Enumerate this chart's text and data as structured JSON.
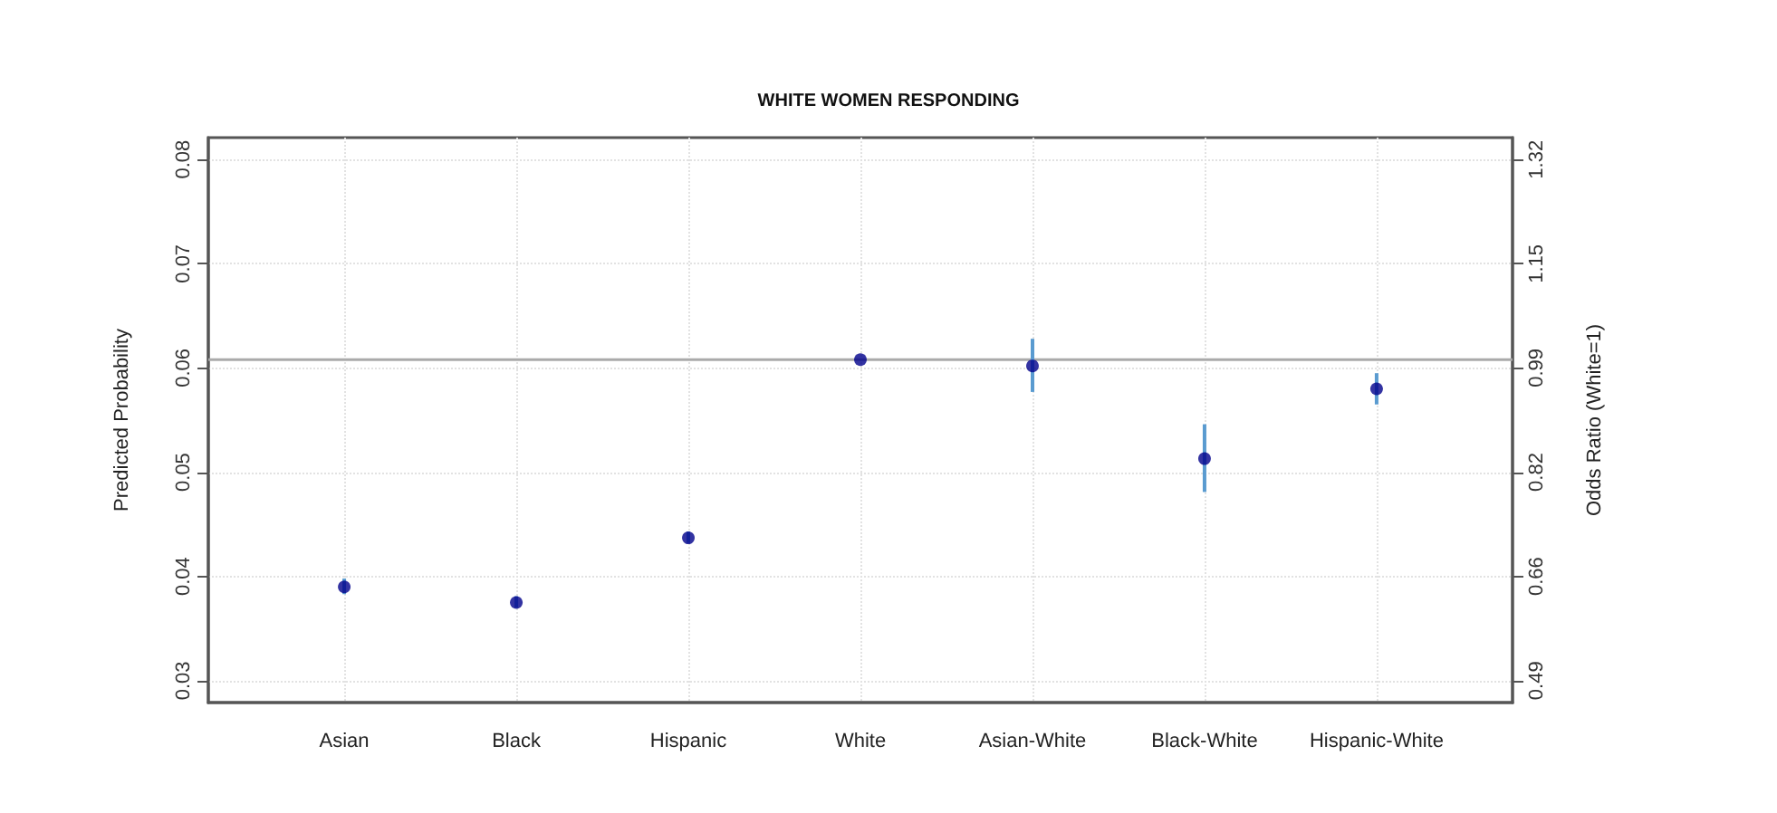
{
  "chart_data": {
    "type": "scatter",
    "title": "WHITE WOMEN RESPONDING",
    "ylabel": "Predicted Probability",
    "y2label": "Odds Ratio (White=1)",
    "categories": [
      "Asian",
      "Black",
      "Hispanic",
      "White",
      "Asian-White",
      "Black-White",
      "Hispanic-White"
    ],
    "series": [
      {
        "color": "#00008b",
        "values": [
          0.039,
          0.0375,
          0.0437,
          0.0608,
          0.0602,
          0.0513,
          0.058
        ],
        "errors": [
          [
            0.0383,
            0.0398
          ],
          [
            0.037,
            0.0381
          ],
          [
            0.0432,
            0.0443
          ],
          null,
          [
            0.0577,
            0.0628
          ],
          [
            0.0481,
            0.0546
          ],
          [
            0.0565,
            0.0595
          ]
        ]
      }
    ],
    "ylim": [
      0.0279,
      0.0821
    ],
    "yticks": [
      0.03,
      0.04,
      0.05,
      0.06,
      0.07,
      0.08
    ],
    "y2lim": [
      0.455,
      1.355
    ],
    "y2ticks": [
      {
        "value": 0.49,
        "label": "0.49"
      },
      {
        "value": 0.656,
        "label": "0.66"
      },
      {
        "value": 0.822,
        "label": "0.82"
      },
      {
        "value": 0.988,
        "label": "0.99"
      },
      {
        "value": 1.154,
        "label": "1.15"
      },
      {
        "value": 1.32,
        "label": "1.32"
      }
    ],
    "ref_lines": [
      {
        "axis": "y",
        "value": 0.0608,
        "color": "#aaaaaa"
      }
    ],
    "grid": true,
    "marker": "circle"
  }
}
